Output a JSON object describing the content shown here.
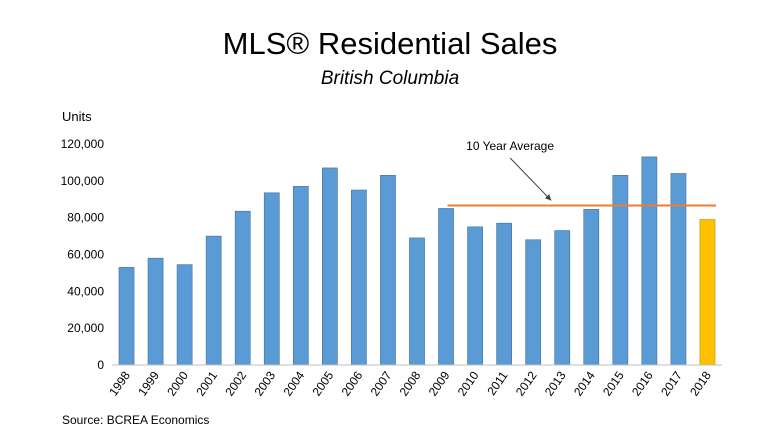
{
  "chart_data": {
    "type": "bar",
    "title": "MLS® Residential Sales",
    "subtitle": "British Columbia",
    "ylabel": "Units",
    "ylim": [
      0,
      120000
    ],
    "yticks": [
      0,
      20000,
      40000,
      60000,
      80000,
      100000,
      120000
    ],
    "ytick_labels": [
      "0",
      "20,000",
      "40,000",
      "60,000",
      "80,000",
      "100,000",
      "120,000"
    ],
    "categories": [
      "1998",
      "1999",
      "2000",
      "2001",
      "2002",
      "2003",
      "2004",
      "2005",
      "2006",
      "2007",
      "2008",
      "2009",
      "2010",
      "2011",
      "2012",
      "2013",
      "2014",
      "2015",
      "2016",
      "2017",
      "2018"
    ],
    "values": [
      53000,
      58000,
      54500,
      70000,
      83500,
      93500,
      97000,
      107000,
      95000,
      103000,
      69000,
      85000,
      75000,
      77000,
      68000,
      73000,
      84500,
      103000,
      113000,
      104000,
      79000
    ],
    "colors": {
      "default": "#5b9bd5",
      "highlight": "#ffc000",
      "average_line": "#ed7d31"
    },
    "highlight_category": "2018",
    "average": {
      "label": "10 Year Average",
      "value": 85000,
      "from_category": "2009",
      "to_category": "2018"
    },
    "source": "Source: BCREA Economics",
    "grid": false,
    "legend": "none"
  }
}
